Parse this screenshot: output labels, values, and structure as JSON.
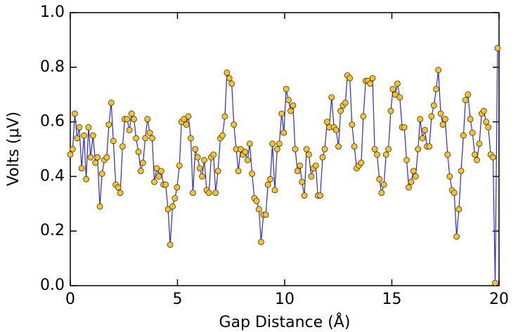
{
  "chart_data": {
    "type": "line",
    "xlabel": "Gap Distance (Å)",
    "ylabel": "Volts (μV)",
    "xlim": [
      0,
      20
    ],
    "xticks": [
      0,
      5,
      10,
      15,
      20
    ],
    "ylim": [
      0,
      1
    ],
    "yticks": [
      {
        "value": 0,
        "label": "0.0"
      },
      {
        "value": 0.2,
        "label": "0.2"
      },
      {
        "value": 0.4,
        "label": "0.4"
      },
      {
        "value": 0.6,
        "label": "0.6"
      },
      {
        "value": 0.8,
        "label": "0.8"
      },
      {
        "value": 1,
        "label": "1.0"
      }
    ],
    "line_color": "#2a2ae0",
    "marker_color": "#fcc419",
    "x": [
      0,
      0.11,
      0.21,
      0.32,
      0.42,
      0.53,
      0.64,
      0.74,
      0.85,
      0.95,
      1.06,
      1.17,
      1.27,
      1.38,
      1.48,
      1.59,
      1.7,
      1.8,
      1.91,
      2.01,
      2.12,
      2.23,
      2.33,
      2.44,
      2.54,
      2.65,
      2.76,
      2.86,
      2.97,
      3.07,
      3.18,
      3.29,
      3.39,
      3.5,
      3.6,
      3.71,
      3.82,
      3.92,
      4.03,
      4.13,
      4.24,
      4.35,
      4.45,
      4.56,
      4.66,
      4.77,
      4.88,
      4.98,
      5.09,
      5.19,
      5.3,
      5.41,
      5.51,
      5.62,
      5.72,
      5.83,
      5.94,
      6.04,
      6.15,
      6.25,
      6.36,
      6.47,
      6.57,
      6.68,
      6.78,
      6.89,
      7.0,
      7.1,
      7.21,
      7.31,
      7.42,
      7.53,
      7.63,
      7.74,
      7.84,
      7.95,
      8.06,
      8.16,
      8.27,
      8.37,
      8.48,
      8.59,
      8.69,
      8.8,
      8.9,
      9.01,
      9.12,
      9.22,
      9.33,
      9.43,
      9.54,
      9.65,
      9.75,
      9.86,
      9.96,
      10.07,
      10.18,
      10.28,
      10.39,
      10.49,
      10.6,
      10.71,
      10.81,
      10.92,
      11.02,
      11.13,
      11.24,
      11.34,
      11.45,
      11.55,
      11.66,
      11.77,
      11.87,
      11.98,
      12.08,
      12.19,
      12.3,
      12.4,
      12.51,
      12.61,
      12.72,
      12.83,
      12.93,
      13.04,
      13.14,
      13.25,
      13.36,
      13.46,
      13.57,
      13.67,
      13.78,
      13.89,
      13.99,
      14.1,
      14.2,
      14.31,
      14.42,
      14.52,
      14.63,
      14.73,
      14.84,
      14.95,
      15.05,
      15.16,
      15.26,
      15.37,
      15.48,
      15.58,
      15.69,
      15.79,
      15.9,
      16.01,
      16.11,
      16.22,
      16.32,
      16.43,
      16.54,
      16.64,
      16.75,
      16.85,
      16.96,
      17.07,
      17.17,
      17.28,
      17.38,
      17.49,
      17.6,
      17.7,
      17.81,
      17.91,
      18.02,
      18.13,
      18.23,
      18.34,
      18.44,
      18.55,
      18.66,
      18.76,
      18.87,
      18.97,
      19.08,
      19.19,
      19.29,
      19.4,
      19.5,
      19.61,
      19.72,
      19.82,
      19.93
    ],
    "values": [
      0.48,
      0.5,
      0.63,
      0.54,
      0.58,
      0.43,
      0.55,
      0.39,
      0.58,
      0.47,
      0.55,
      0.45,
      0.47,
      0.29,
      0.41,
      0.46,
      0.47,
      0.59,
      0.67,
      0.53,
      0.37,
      0.36,
      0.34,
      0.51,
      0.61,
      0.61,
      0.57,
      0.63,
      0.61,
      0.54,
      0.49,
      0.42,
      0.45,
      0.54,
      0.61,
      0.56,
      0.54,
      0.38,
      0.43,
      0.4,
      0.42,
      0.37,
      0.37,
      0.28,
      0.15,
      0.29,
      0.32,
      0.36,
      0.44,
      0.6,
      0.61,
      0.59,
      0.62,
      0.54,
      0.34,
      0.5,
      0.47,
      0.43,
      0.4,
      0.46,
      0.35,
      0.34,
      0.47,
      0.48,
      0.34,
      0.42,
      0.54,
      0.55,
      0.62,
      0.78,
      0.76,
      0.74,
      0.59,
      0.5,
      0.42,
      0.5,
      0.48,
      0.49,
      0.46,
      0.52,
      0.41,
      0.32,
      0.31,
      0.28,
      0.16,
      0.26,
      0.26,
      0.37,
      0.39,
      0.52,
      0.35,
      0.5,
      0.52,
      0.63,
      0.56,
      0.72,
      0.68,
      0.64,
      0.66,
      0.5,
      0.42,
      0.44,
      0.38,
      0.33,
      0.5,
      0.48,
      0.4,
      0.43,
      0.44,
      0.33,
      0.33,
      0.47,
      0.5,
      0.6,
      0.58,
      0.69,
      0.58,
      0.57,
      0.51,
      0.64,
      0.66,
      0.67,
      0.77,
      0.76,
      0.59,
      0.51,
      0.43,
      0.44,
      0.45,
      0.62,
      0.75,
      0.75,
      0.74,
      0.76,
      0.5,
      0.48,
      0.39,
      0.34,
      0.37,
      0.48,
      0.5,
      0.64,
      0.72,
      0.7,
      0.74,
      0.69,
      0.58,
      0.58,
      0.46,
      0.36,
      0.38,
      0.42,
      0.4,
      0.5,
      0.61,
      0.54,
      0.57,
      0.51,
      0.51,
      0.62,
      0.66,
      0.72,
      0.79,
      0.63,
      0.59,
      0.61,
      0.48,
      0.4,
      0.35,
      0.34,
      0.18,
      0.28,
      0.42,
      0.55,
      0.68,
      0.7,
      0.61,
      0.56,
      0.48,
      0.46,
      0.52,
      0.63,
      0.64,
      0.6,
      0.58,
      0.48,
      0.47,
      0.01,
      0.87
    ]
  }
}
